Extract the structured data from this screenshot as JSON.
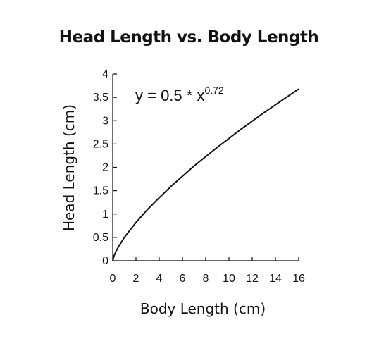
{
  "chart_data": {
    "type": "line",
    "title": "Head Length vs. Body Length",
    "xlabel": "Body Length (cm)",
    "ylabel": "Head Length (cm)",
    "xlim": [
      0,
      16
    ],
    "ylim": [
      0,
      4
    ],
    "x_ticks": [
      "0",
      "2",
      "4",
      "6",
      "8",
      "10",
      "12",
      "14",
      "16"
    ],
    "y_ticks": [
      "0",
      "0.5",
      "1",
      "1.5",
      "2",
      "2.5",
      "3",
      "3.5",
      "4"
    ],
    "grid": false,
    "equation": {
      "base": "y = 0.5 * x",
      "exponent": "0.72"
    },
    "series": [
      {
        "x": [
          0,
          0.1,
          0.25,
          0.5,
          1,
          2,
          3,
          4,
          5,
          6,
          7,
          8,
          9,
          10,
          11,
          12,
          13,
          14,
          15,
          16
        ],
        "y": [
          0,
          0.095,
          0.184,
          0.304,
          0.5,
          0.82,
          1.1,
          1.35,
          1.59,
          1.81,
          2.03,
          2.23,
          2.43,
          2.62,
          2.81,
          2.99,
          3.17,
          3.34,
          3.51,
          3.68
        ]
      }
    ]
  }
}
